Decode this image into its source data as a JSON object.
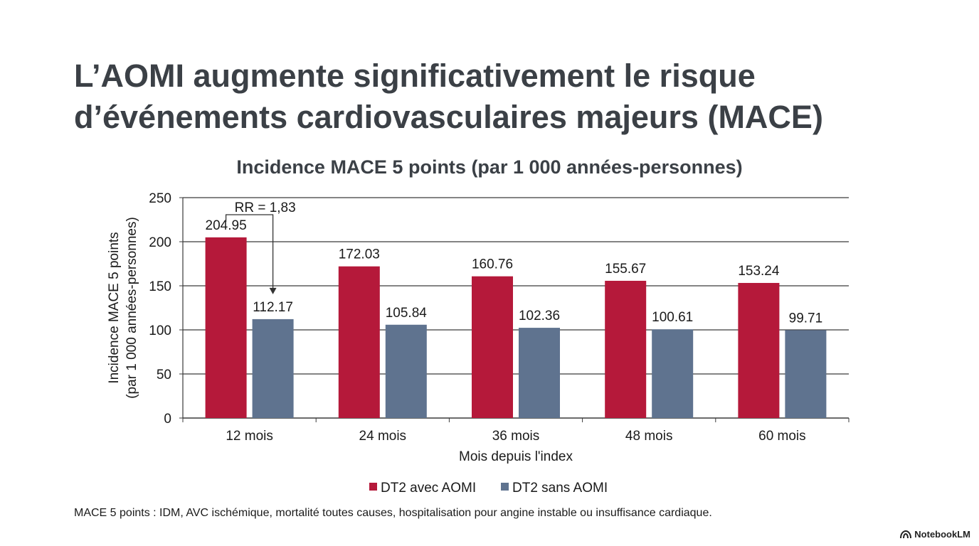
{
  "slide": {
    "title_line1": "L’AOMI augmente significativement le risque",
    "title_line2": "d’événements cardiovasculaires majeurs (MACE)",
    "footnote": "MACE 5 points : IDM, AVC ischémique, mortalité toutes causes, hospitalisation pour angine instable ou insuffisance cardiaque.",
    "brand": "NotebookLM",
    "brand_icon": "notebooklm-logo-icon"
  },
  "chart_data": {
    "type": "bar",
    "title": "Incidence MACE 5 points (par 1 000 années-personnes)",
    "ylabel_line1": "Incidence MACE 5 points",
    "ylabel_line2": "(par 1 000 années-personnes)",
    "xlabel": "Mois depuis l'index",
    "categories": [
      "12 mois",
      "24 mois",
      "36 mois",
      "48 mois",
      "60 mois"
    ],
    "ylim": [
      0,
      250
    ],
    "yticks": [
      0,
      50,
      100,
      150,
      200,
      250
    ],
    "grid": true,
    "series": [
      {
        "name": "DT2 avec AOMI",
        "color": "#b5193a",
        "values": [
          204.95,
          172.03,
          160.76,
          155.67,
          153.24
        ],
        "labels": [
          "204.95",
          "172.03",
          "160.76",
          "155.67",
          "153.24"
        ]
      },
      {
        "name": "DT2 sans AOMI",
        "color": "#5f738f",
        "values": [
          112.17,
          105.84,
          102.36,
          100.61,
          99.71
        ],
        "labels": [
          "112.17",
          "105.84",
          "102.36",
          "100.61",
          "99.71"
        ]
      }
    ],
    "annotation": {
      "text": "RR = 1,83",
      "category_index": 0
    },
    "legend_position": "bottom"
  }
}
